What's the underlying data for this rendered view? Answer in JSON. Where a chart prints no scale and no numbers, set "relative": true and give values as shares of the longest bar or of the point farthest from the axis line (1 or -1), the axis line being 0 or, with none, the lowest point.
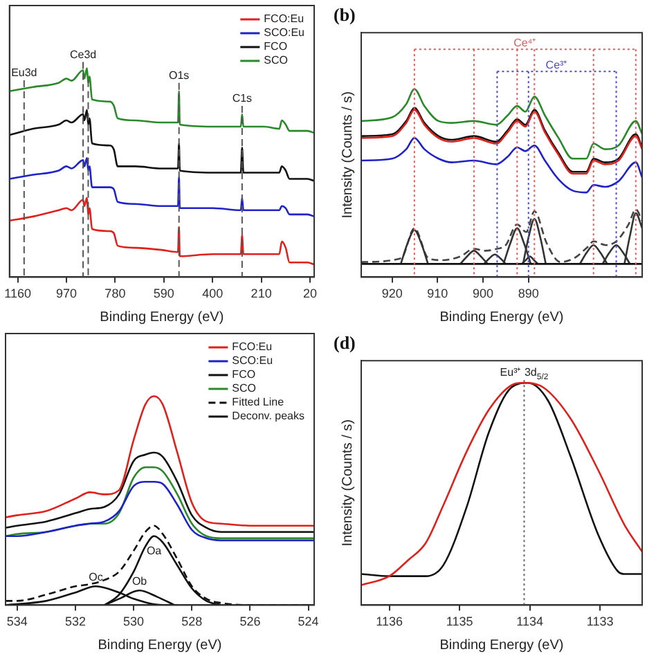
{
  "chart_data": [
    {
      "type": "line",
      "xlabel": "Binding Energy (eV)",
      "relative": true,
      "xlim": [
        1192,
        4
      ],
      "xticks": [
        1160,
        970,
        780,
        590,
        400,
        210,
        20
      ],
      "legend": "top right",
      "series": [
        {
          "name": "FCO:Eu",
          "color": "#e0201b",
          "x": [
            1192,
            1100,
            1000,
            970,
            950,
            905,
            900,
            890,
            885,
            880,
            870,
            800,
            785,
            770,
            700,
            600,
            535,
            531,
            528,
            400,
            290,
            285,
            280,
            200,
            140,
            130,
            115,
            100,
            30,
            4
          ],
          "values": [
            0.27,
            0.29,
            0.32,
            0.33,
            0.32,
            0.37,
            0.34,
            0.38,
            0.3,
            0.33,
            0.23,
            0.22,
            0.21,
            0.15,
            0.14,
            0.13,
            0.12,
            0.24,
            0.1,
            0.11,
            0.11,
            0.2,
            0.11,
            0.11,
            0.11,
            0.17,
            0.14,
            0.07,
            0.07,
            0.06
          ]
        },
        {
          "name": "SCO:Eu",
          "color": "#1f22c8",
          "x": [
            1192,
            1100,
            1000,
            970,
            950,
            905,
            900,
            890,
            885,
            880,
            870,
            800,
            785,
            770,
            700,
            600,
            535,
            531,
            528,
            400,
            290,
            285,
            280,
            200,
            140,
            130,
            115,
            100,
            30,
            4
          ],
          "values": [
            0.47,
            0.49,
            0.51,
            0.53,
            0.52,
            0.56,
            0.53,
            0.57,
            0.51,
            0.53,
            0.43,
            0.43,
            0.42,
            0.36,
            0.35,
            0.34,
            0.34,
            0.48,
            0.33,
            0.33,
            0.32,
            0.38,
            0.32,
            0.32,
            0.32,
            0.34,
            0.33,
            0.3,
            0.3,
            0.29
          ]
        },
        {
          "name": "FCO",
          "color": "#111111",
          "x": [
            1192,
            1100,
            1000,
            970,
            950,
            905,
            900,
            890,
            885,
            880,
            870,
            800,
            785,
            770,
            700,
            600,
            535,
            531,
            528,
            400,
            290,
            285,
            280,
            200,
            140,
            130,
            115,
            100,
            30,
            4
          ],
          "values": [
            0.68,
            0.71,
            0.73,
            0.75,
            0.74,
            0.78,
            0.75,
            0.8,
            0.73,
            0.76,
            0.64,
            0.63,
            0.61,
            0.53,
            0.53,
            0.52,
            0.52,
            0.64,
            0.51,
            0.5,
            0.5,
            0.62,
            0.5,
            0.5,
            0.5,
            0.53,
            0.51,
            0.47,
            0.47,
            0.46
          ]
        },
        {
          "name": "SCO",
          "color": "#2a8a2a",
          "x": [
            1192,
            1100,
            1000,
            970,
            950,
            905,
            900,
            890,
            885,
            880,
            870,
            800,
            785,
            770,
            700,
            600,
            535,
            531,
            528,
            400,
            290,
            285,
            280,
            200,
            140,
            130,
            115,
            100,
            30,
            4
          ],
          "values": [
            0.89,
            0.91,
            0.93,
            0.95,
            0.94,
            0.99,
            0.95,
            1.0,
            0.93,
            0.96,
            0.85,
            0.84,
            0.82,
            0.76,
            0.75,
            0.74,
            0.74,
            0.89,
            0.73,
            0.72,
            0.72,
            0.78,
            0.72,
            0.72,
            0.71,
            0.75,
            0.73,
            0.7,
            0.7,
            0.69
          ]
        }
      ],
      "ref_lines": [
        {
          "axis": "x",
          "value": 1135,
          "label": "Eu3d",
          "color": "#555555",
          "line_style": "dashed"
        },
        {
          "axis": "x",
          "value": 905,
          "label": "Ce3d",
          "color": "#555555",
          "line_style": "dashed"
        },
        {
          "axis": "x",
          "value": 885,
          "color": "#555555",
          "line_style": "dashed"
        },
        {
          "axis": "x",
          "value": 531,
          "label": "O1s",
          "color": "#555555",
          "line_style": "dashed"
        },
        {
          "axis": "x",
          "value": 285,
          "label": "C1s",
          "color": "#555555",
          "line_style": "dashed"
        }
      ]
    },
    {
      "type": "line",
      "title": "(b)",
      "xlabel": "Binding Energy (eV)",
      "ylabel": "Intensity (Counts / s)",
      "relative": true,
      "xlim": [
        926.8,
        865
      ],
      "xticks": [
        920,
        910,
        900,
        890
      ],
      "series": [
        {
          "color": "#2a8a2a",
          "x": [
            926.8,
            920,
            916.9,
            915.1,
            912.9,
            909.8,
            906.8,
            902,
            897.1,
            894.6,
            892.5,
            890.7,
            888.7,
            886.4,
            883.4,
            880.3,
            877.3,
            875.7,
            873.2,
            870.2,
            866.4,
            865
          ],
          "values": [
            0.83,
            0.85,
            0.92,
            1.0,
            0.91,
            0.83,
            0.82,
            0.83,
            0.81,
            0.86,
            0.91,
            0.88,
            0.96,
            0.86,
            0.74,
            0.63,
            0.63,
            0.71,
            0.68,
            0.7,
            0.83,
            0.76
          ]
        },
        {
          "color": "#e0201b",
          "x": [
            926.8,
            920,
            916.9,
            915.1,
            912.9,
            909.8,
            906.8,
            902,
            897.1,
            894.6,
            892.5,
            890.7,
            888.7,
            886.4,
            883.4,
            880.3,
            877.3,
            875.7,
            873.2,
            870.2,
            866.4,
            865
          ],
          "values": [
            0.74,
            0.75,
            0.82,
            0.89,
            0.81,
            0.74,
            0.72,
            0.74,
            0.71,
            0.77,
            0.83,
            0.8,
            0.88,
            0.77,
            0.65,
            0.55,
            0.55,
            0.62,
            0.6,
            0.62,
            0.75,
            0.68
          ]
        },
        {
          "color": "#111111",
          "x": [
            926.8,
            920,
            916.9,
            915.1,
            912.9,
            909.8,
            906.8,
            902,
            897.1,
            894.6,
            892.5,
            890.7,
            888.7,
            886.4,
            883.4,
            880.3,
            877.3,
            875.7,
            873.2,
            870.2,
            866.4,
            865
          ],
          "values": [
            0.75,
            0.76,
            0.83,
            0.9,
            0.82,
            0.75,
            0.73,
            0.75,
            0.72,
            0.78,
            0.84,
            0.81,
            0.89,
            0.78,
            0.66,
            0.56,
            0.56,
            0.63,
            0.61,
            0.63,
            0.76,
            0.69
          ]
        },
        {
          "color": "#1f22c8",
          "x": [
            926.8,
            920,
            916.9,
            915.1,
            912.9,
            909.8,
            906.8,
            902,
            897.1,
            894.6,
            892.5,
            890.7,
            888.7,
            886.4,
            883.4,
            880.3,
            877.3,
            875.7,
            873.2,
            870.2,
            866.4,
            865
          ],
          "values": [
            0.62,
            0.63,
            0.68,
            0.74,
            0.68,
            0.63,
            0.61,
            0.62,
            0.6,
            0.64,
            0.69,
            0.67,
            0.7,
            0.62,
            0.52,
            0.46,
            0.45,
            0.49,
            0.48,
            0.51,
            0.61,
            0.53
          ]
        },
        {
          "color": "#111111",
          "x": [
            926.8,
            865
          ],
          "values": [
            0.07,
            0.07
          ]
        },
        {
          "color": "#333333",
          "x": [
            918.1,
            916.6,
            915.1,
            913.6,
            912.1
          ],
          "values": [
            0.07,
            0.18,
            0.25,
            0.18,
            0.07
          ]
        },
        {
          "color": "#333333",
          "x": [
            905,
            903.5,
            902,
            900.5,
            899
          ],
          "values": [
            0.07,
            0.11,
            0.14,
            0.11,
            0.07
          ]
        },
        {
          "color": "#333333",
          "x": [
            899.8,
            898.6,
            897.4,
            896.2,
            895
          ],
          "values": [
            0.07,
            0.1,
            0.12,
            0.1,
            0.07
          ]
        },
        {
          "color": "#333333",
          "x": [
            895.5,
            894,
            892.5,
            891,
            889.5
          ],
          "values": [
            0.07,
            0.18,
            0.26,
            0.18,
            0.07
          ]
        },
        {
          "color": "#333333",
          "x": [
            891.5,
            890.6,
            889.7,
            888.8,
            887.9
          ],
          "values": [
            0.07,
            0.09,
            0.11,
            0.09,
            0.07
          ]
        },
        {
          "color": "#333333",
          "x": [
            891.2,
            890,
            888.7,
            887.4,
            886.2
          ],
          "values": [
            0.07,
            0.21,
            0.31,
            0.21,
            0.07
          ]
        },
        {
          "color": "#333333",
          "x": [
            878.7,
            877.2,
            875.7,
            874.2,
            872.7
          ],
          "values": [
            0.07,
            0.13,
            0.17,
            0.13,
            0.07
          ]
        },
        {
          "color": "#333333",
          "x": [
            873.7,
            872.2,
            870.7,
            869.2,
            867.7
          ],
          "values": [
            0.07,
            0.13,
            0.17,
            0.13,
            0.07
          ]
        },
        {
          "color": "#333333",
          "x": [
            868.9,
            867.6,
            866.4,
            865
          ],
          "values": [
            0.07,
            0.23,
            0.34,
            0.26
          ]
        },
        {
          "color": "#444444",
          "line_style": "dashed",
          "x": [
            926.8,
            918,
            915.1,
            912,
            909,
            905,
            902,
            899.5,
            897,
            895,
            892.5,
            890.5,
            888.7,
            886,
            883,
            880,
            877,
            875.7,
            873,
            870.7,
            868,
            866.4,
            865
          ],
          "values": [
            0.08,
            0.1,
            0.26,
            0.1,
            0.09,
            0.11,
            0.15,
            0.14,
            0.15,
            0.17,
            0.28,
            0.24,
            0.35,
            0.18,
            0.08,
            0.1,
            0.16,
            0.19,
            0.17,
            0.19,
            0.28,
            0.36,
            0.3
          ]
        }
      ],
      "ref_lines": [
        {
          "axis": "x",
          "value": 915.1,
          "color": "#e05a5a",
          "line_style": "dotted"
        },
        {
          "axis": "x",
          "value": 902.0,
          "color": "#e05a5a",
          "line_style": "dotted"
        },
        {
          "axis": "x",
          "value": 892.5,
          "label": "Ce⁴⁺",
          "color": "#e05a5a",
          "line_style": "dotted"
        },
        {
          "axis": "x",
          "value": 888.7,
          "color": "#e05a5a",
          "line_style": "dotted"
        },
        {
          "axis": "x",
          "value": 875.7,
          "color": "#e05a5a",
          "line_style": "dotted"
        },
        {
          "axis": "x",
          "value": 866.4,
          "color": "#e05a5a",
          "line_style": "dotted"
        },
        {
          "axis": "x",
          "value": 896.9,
          "label": "Ce³⁺",
          "color": "#4a4ad8",
          "line_style": "dotted"
        },
        {
          "axis": "x",
          "value": 890.0,
          "color": "#4a4ad8",
          "line_style": "dotted"
        },
        {
          "axis": "x",
          "value": 870.7,
          "color": "#4a4ad8",
          "line_style": "dotted"
        }
      ]
    },
    {
      "type": "line",
      "xlabel": "Binding Energy (eV)",
      "relative": true,
      "xlim": [
        534.4,
        523.8
      ],
      "xticks": [
        534,
        532,
        530,
        528,
        526,
        524
      ],
      "legend": "top right",
      "series": [
        {
          "name": "FCO:Eu",
          "color": "#e0201b",
          "x": [
            534.4,
            534,
            533,
            532,
            531.5,
            531,
            530.5,
            530,
            529.6,
            529.3,
            529,
            528.5,
            528,
            527.5,
            527,
            526,
            524,
            523.8
          ],
          "values": [
            0.42,
            0.43,
            0.45,
            0.51,
            0.54,
            0.53,
            0.55,
            0.79,
            0.96,
            1.0,
            0.96,
            0.73,
            0.49,
            0.4,
            0.39,
            0.38,
            0.38,
            0.38
          ]
        },
        {
          "name": "SCO:Eu",
          "color": "#1f22c8",
          "x": [
            534.4,
            534,
            533,
            532,
            531.5,
            531,
            530.5,
            530,
            529.6,
            529.3,
            529,
            528.5,
            528,
            527.5,
            527,
            526,
            524,
            523.8
          ],
          "values": [
            0.33,
            0.33,
            0.35,
            0.38,
            0.39,
            0.4,
            0.45,
            0.57,
            0.59,
            0.59,
            0.58,
            0.48,
            0.36,
            0.32,
            0.31,
            0.31,
            0.31,
            0.31
          ]
        },
        {
          "name": "FCO",
          "color": "#111111",
          "x": [
            534.4,
            534,
            533,
            532,
            531.5,
            531,
            530.5,
            530,
            529.6,
            529.3,
            529,
            528.5,
            528,
            527.5,
            527,
            526,
            524,
            523.8
          ],
          "values": [
            0.37,
            0.38,
            0.4,
            0.44,
            0.46,
            0.47,
            0.53,
            0.69,
            0.72,
            0.73,
            0.71,
            0.59,
            0.43,
            0.37,
            0.35,
            0.35,
            0.35,
            0.35
          ]
        },
        {
          "name": "SCO",
          "color": "#2a8a2a",
          "x": [
            534.4,
            534,
            533,
            532,
            531.5,
            531,
            530.5,
            530,
            529.6,
            529.3,
            529,
            528.5,
            528,
            527.5,
            527,
            526,
            524,
            523.8
          ],
          "values": [
            0.33,
            0.34,
            0.35,
            0.38,
            0.39,
            0.39,
            0.44,
            0.61,
            0.66,
            0.66,
            0.64,
            0.53,
            0.39,
            0.33,
            0.32,
            0.32,
            0.32,
            0.32
          ]
        },
        {
          "name": "Fitted Line",
          "color": "#111111",
          "line_style": "dashed",
          "x": [
            534.4,
            534,
            533,
            532,
            531.5,
            531,
            530.5,
            530,
            529.6,
            529.3,
            529,
            528.5,
            528,
            527.5,
            527,
            526,
            524,
            523.8
          ],
          "values": [
            0.02,
            0.02,
            0.05,
            0.09,
            0.1,
            0.12,
            0.16,
            0.26,
            0.35,
            0.38,
            0.34,
            0.22,
            0.09,
            0.03,
            0.01,
            0.0,
            0.0,
            0.0
          ]
        },
        {
          "name": "Deconv. peaks",
          "color": "#111111",
          "x": [
            531,
            530.5,
            530,
            529.6,
            529.3,
            529,
            528.5,
            528,
            527.5,
            527
          ],
          "values": [
            0.0,
            0.05,
            0.16,
            0.28,
            0.33,
            0.3,
            0.19,
            0.08,
            0.02,
            0.0
          ]
        },
        {
          "color": "#111111",
          "x": [
            534.4,
            533,
            532,
            531.3,
            530.5,
            530,
            529,
            528.5
          ],
          "values": [
            0.0,
            0.02,
            0.06,
            0.09,
            0.06,
            0.03,
            0.0,
            0.0
          ]
        },
        {
          "color": "#111111",
          "x": [
            531,
            530.5,
            529.8,
            529.2,
            528.6
          ],
          "values": [
            0.0,
            0.03,
            0.07,
            0.04,
            0.0
          ]
        }
      ],
      "annotations": [
        {
          "text": "Oa",
          "x": 529.3,
          "y": 0.33
        },
        {
          "text": "Ob",
          "x": 529.8,
          "y": 0.07
        },
        {
          "text": "Oc",
          "x": 531.3,
          "y": 0.09
        }
      ]
    },
    {
      "type": "line",
      "title": "(d)",
      "xlabel": "Binding Energy (eV)",
      "ylabel": "Intensity (Counts / s)",
      "relative": true,
      "xlim": [
        1136.4,
        1132.4
      ],
      "xticks": [
        1136,
        1135,
        1134,
        1133
      ],
      "series": [
        {
          "color": "#e0201b",
          "x": [
            1136.4,
            1136.0,
            1135.74,
            1135.48,
            1135.23,
            1134.9,
            1134.58,
            1134.26,
            1134.1,
            1133.81,
            1133.42,
            1133.03,
            1132.65,
            1132.4
          ],
          "values": [
            0.09,
            0.13,
            0.2,
            0.28,
            0.45,
            0.69,
            0.88,
            0.99,
            1.0,
            0.98,
            0.84,
            0.61,
            0.36,
            0.24
          ]
        },
        {
          "color": "#111111",
          "x": [
            1136.4,
            1136.0,
            1135.48,
            1135.23,
            1134.9,
            1134.58,
            1134.26,
            1134.03,
            1133.74,
            1133.42,
            1133.03,
            1132.74,
            1132.65,
            1132.4
          ],
          "values": [
            0.14,
            0.13,
            0.13,
            0.18,
            0.44,
            0.78,
            0.98,
            1.0,
            0.92,
            0.67,
            0.32,
            0.15,
            0.14,
            0.14
          ]
        }
      ],
      "ref_lines": [
        {
          "axis": "x",
          "value": 1134.08,
          "label": "Eu³⁺ 3d$_{5/2}$",
          "color": "#666666",
          "line_style": "dotted"
        }
      ]
    }
  ]
}
